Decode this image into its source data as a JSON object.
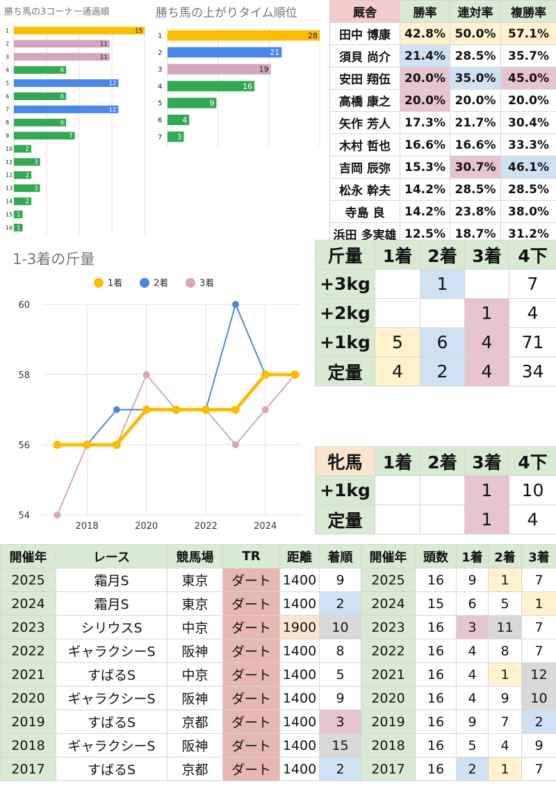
{
  "corner_chart": {
    "type": "bar",
    "title": "勝ち馬の3コーナー通過順",
    "categories": [
      "1",
      "2",
      "3",
      "4",
      "5",
      "6",
      "7",
      "8",
      "9",
      "10",
      "11",
      "12",
      "13",
      "14",
      "15",
      "16"
    ],
    "values": [
      15,
      11,
      11,
      6,
      12,
      6,
      12,
      6,
      7,
      2,
      3,
      2,
      3,
      2,
      1,
      1
    ],
    "colors": [
      "#fbbc04",
      "#d5a6bd",
      "#d5a6bd",
      "#34a853",
      "#4a86e8",
      "#34a853",
      "#4a86e8",
      "#34a853",
      "#34a853",
      "#34a853",
      "#34a853",
      "#34a853",
      "#34a853",
      "#34a853",
      "#34a853",
      "#34a853"
    ],
    "xlim": [
      0,
      15
    ]
  },
  "agari_chart": {
    "type": "bar",
    "title": "勝ち馬の上がりタイム順位",
    "categories": [
      "1",
      "2",
      "3",
      "4",
      "5",
      "6",
      "7"
    ],
    "values": [
      28,
      21,
      19,
      16,
      9,
      4,
      3
    ],
    "colors": [
      "#fbbc04",
      "#4a86e8",
      "#d5a6bd",
      "#34a853",
      "#34a853",
      "#34a853",
      "#34a853"
    ],
    "xlim": [
      0,
      28
    ]
  },
  "chart_data": {
    "type": "line",
    "title": "1-3着の斤量",
    "x": [
      2017,
      2018,
      2019,
      2020,
      2021,
      2022,
      2023,
      2024,
      2025
    ],
    "series": [
      {
        "name": "1着",
        "color": "#fbbc04",
        "values": [
          56,
          56,
          56,
          57,
          57,
          57,
          57,
          58,
          58
        ]
      },
      {
        "name": "2着",
        "color": "#4a86e8",
        "values": [
          56,
          56,
          57,
          57,
          57,
          57,
          60,
          58,
          58
        ]
      },
      {
        "name": "3着",
        "color": "#d5a6bd",
        "values": [
          54,
          56,
          56,
          58,
          57,
          57,
          56,
          57,
          58
        ]
      }
    ],
    "xticks": [
      "2018",
      "2020",
      "2022",
      "2024"
    ],
    "xtick_values": [
      2018,
      2020,
      2022,
      2024
    ],
    "yticks": [
      "54",
      "56",
      "58",
      "60"
    ],
    "ylim": [
      54,
      60
    ],
    "xlim": [
      2016.5,
      2025.2
    ],
    "legend_position": "top"
  },
  "jockey_table": {
    "headers": [
      "厩舎",
      "勝率",
      "連対率",
      "複勝率"
    ],
    "rows": [
      {
        "name": "田中 博康",
        "win": "42.8%",
        "ren": "50.0%",
        "fuku": "57.1%",
        "c": [
          "",
          "yl",
          "yl",
          "yl"
        ]
      },
      {
        "name": "須貝 尚介",
        "win": "21.4%",
        "ren": "28.5%",
        "fuku": "35.7%",
        "c": [
          "",
          "bl",
          "",
          ""
        ]
      },
      {
        "name": "安田 翔伍",
        "win": "20.0%",
        "ren": "35.0%",
        "fuku": "45.0%",
        "c": [
          "",
          "pk",
          "bl",
          "pk"
        ]
      },
      {
        "name": "高橋 康之",
        "win": "20.0%",
        "ren": "20.0%",
        "fuku": "20.0%",
        "c": [
          "",
          "pk",
          "",
          ""
        ]
      },
      {
        "name": "矢作 芳人",
        "win": "17.3%",
        "ren": "21.7%",
        "fuku": "30.4%",
        "c": [
          "",
          "",
          "",
          ""
        ]
      },
      {
        "name": "木村 哲也",
        "win": "16.6%",
        "ren": "16.6%",
        "fuku": "33.3%",
        "c": [
          "",
          "",
          "",
          ""
        ]
      },
      {
        "name": "吉岡 辰弥",
        "win": "15.3%",
        "ren": "30.7%",
        "fuku": "46.1%",
        "c": [
          "",
          "",
          "pk",
          "bl"
        ]
      },
      {
        "name": "松永 幹夫",
        "win": "14.2%",
        "ren": "28.5%",
        "fuku": "28.5%",
        "c": [
          "",
          "",
          "",
          ""
        ]
      },
      {
        "name": "寺島 良",
        "win": "14.2%",
        "ren": "23.8%",
        "fuku": "38.0%",
        "c": [
          "",
          "",
          "",
          ""
        ]
      },
      {
        "name": "浜田 多実雄",
        "win": "12.5%",
        "ren": "18.7%",
        "fuku": "31.2%",
        "c": [
          "",
          "",
          "",
          ""
        ]
      }
    ]
  },
  "weight_table": {
    "headers": [
      "斤量",
      "1着",
      "2着",
      "3着",
      "4下"
    ],
    "rows": [
      {
        "label": "+3kg",
        "vals": [
          "",
          "1",
          "",
          "7"
        ],
        "c": [
          "",
          "bl",
          "",
          ""
        ]
      },
      {
        "label": "+2kg",
        "vals": [
          "",
          "",
          "1",
          "4"
        ],
        "c": [
          "",
          "",
          "pk",
          ""
        ]
      },
      {
        "label": "+1kg",
        "vals": [
          "5",
          "6",
          "4",
          "71"
        ],
        "c": [
          "yl",
          "bl",
          "pk",
          ""
        ]
      },
      {
        "label": "定量",
        "vals": [
          "4",
          "2",
          "4",
          "34"
        ],
        "c": [
          "yl",
          "bl",
          "pk",
          ""
        ]
      }
    ]
  },
  "filly_table": {
    "headers": [
      "牝馬",
      "1着",
      "2着",
      "3着",
      "4下"
    ],
    "rows": [
      {
        "label": "+1kg",
        "vals": [
          "",
          "",
          "1",
          "10"
        ],
        "c": [
          "",
          "",
          "pk",
          ""
        ]
      },
      {
        "label": "定量",
        "vals": [
          "",
          "",
          "1",
          "4"
        ],
        "c": [
          "",
          "",
          "pk",
          ""
        ]
      }
    ]
  },
  "race_table": {
    "headers": [
      "開催年",
      "レース",
      "競馬場",
      "TR",
      "距離",
      "着順",
      "開催年",
      "頭数",
      "1着",
      "2着",
      "3着"
    ],
    "rows": [
      {
        "v": [
          "2025",
          "霜月S",
          "東京",
          "ダート",
          "1400",
          "9",
          "2025",
          "16",
          "9",
          "1",
          "7"
        ],
        "c": [
          "g",
          "",
          "",
          "rd",
          "",
          "",
          "g",
          "",
          "",
          "yl",
          ""
        ]
      },
      {
        "v": [
          "2024",
          "霜月S",
          "東京",
          "ダート",
          "1400",
          "2",
          "2024",
          "15",
          "6",
          "5",
          "1"
        ],
        "c": [
          "g",
          "",
          "",
          "rd",
          "",
          "bl",
          "g",
          "",
          "",
          "",
          "yl"
        ]
      },
      {
        "v": [
          "2023",
          "シリウスS",
          "中京",
          "ダート",
          "1900",
          "10",
          "2023",
          "16",
          "3",
          "11",
          "7"
        ],
        "c": [
          "g",
          "",
          "",
          "rd",
          "or",
          "gr",
          "g",
          "",
          "pk",
          "gr",
          ""
        ]
      },
      {
        "v": [
          "2022",
          "ギャラクシーS",
          "阪神",
          "ダート",
          "1400",
          "8",
          "2022",
          "16",
          "4",
          "8",
          "7"
        ],
        "c": [
          "g",
          "",
          "",
          "rd",
          "",
          "",
          "g",
          "",
          "",
          "",
          ""
        ]
      },
      {
        "v": [
          "2021",
          "すばるS",
          "中京",
          "ダート",
          "1400",
          "5",
          "2021",
          "16",
          "4",
          "1",
          "12"
        ],
        "c": [
          "g",
          "",
          "",
          "rd",
          "",
          "",
          "g",
          "",
          "",
          "yl",
          "gr"
        ]
      },
      {
        "v": [
          "2020",
          "ギャラクシーS",
          "阪神",
          "ダート",
          "1400",
          "9",
          "2020",
          "16",
          "4",
          "9",
          "10"
        ],
        "c": [
          "g",
          "",
          "",
          "rd",
          "",
          "",
          "g",
          "",
          "",
          "",
          "gr"
        ]
      },
      {
        "v": [
          "2019",
          "すばるS",
          "京都",
          "ダート",
          "1400",
          "3",
          "2019",
          "16",
          "9",
          "7",
          "2"
        ],
        "c": [
          "g",
          "",
          "",
          "rd",
          "",
          "pk",
          "g",
          "",
          "",
          "",
          "bl"
        ]
      },
      {
        "v": [
          "2018",
          "ギャラクシーS",
          "阪神",
          "ダート",
          "1400",
          "15",
          "2018",
          "16",
          "5",
          "4",
          "9"
        ],
        "c": [
          "g",
          "",
          "",
          "rd",
          "",
          "gr",
          "g",
          "",
          "",
          "",
          ""
        ]
      },
      {
        "v": [
          "2017",
          "すばるS",
          "京都",
          "ダート",
          "1400",
          "2",
          "2017",
          "16",
          "2",
          "1",
          "7"
        ],
        "c": [
          "g",
          "",
          "",
          "rd",
          "",
          "bl",
          "g",
          "",
          "bl",
          "yl",
          ""
        ]
      }
    ]
  }
}
